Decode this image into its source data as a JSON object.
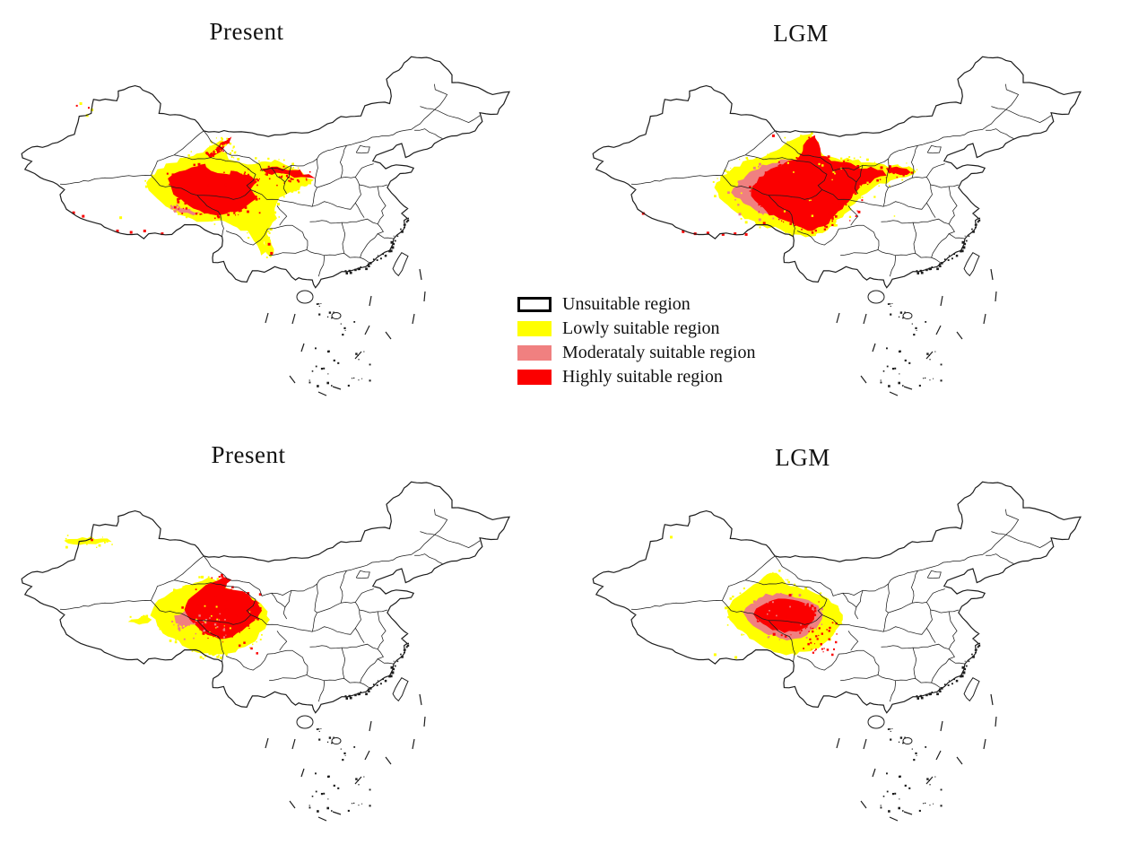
{
  "figure": {
    "type": "species-distribution-maps",
    "background": "#ffffff",
    "rows": 2,
    "cols": 2
  },
  "panels": [
    {
      "id": "p1",
      "title": "Present"
    },
    {
      "id": "p2",
      "title": "LGM"
    },
    {
      "id": "p3",
      "title": "Present"
    },
    {
      "id": "p4",
      "title": "LGM"
    }
  ],
  "legend": {
    "items": [
      {
        "label": "Unsuitable region",
        "swatch": "unsuitable"
      },
      {
        "label": "Lowly suitable region",
        "swatch": "low"
      },
      {
        "label": "Moderataly suitable region",
        "swatch": "moderate"
      },
      {
        "label": "Highly suitable region",
        "swatch": "high"
      }
    ]
  },
  "colors": {
    "unsuitable": "#ffffff",
    "low": "#ffff00",
    "moderate": "#f08080",
    "high": "#fb0000",
    "outline": "#1c1c1c"
  }
}
